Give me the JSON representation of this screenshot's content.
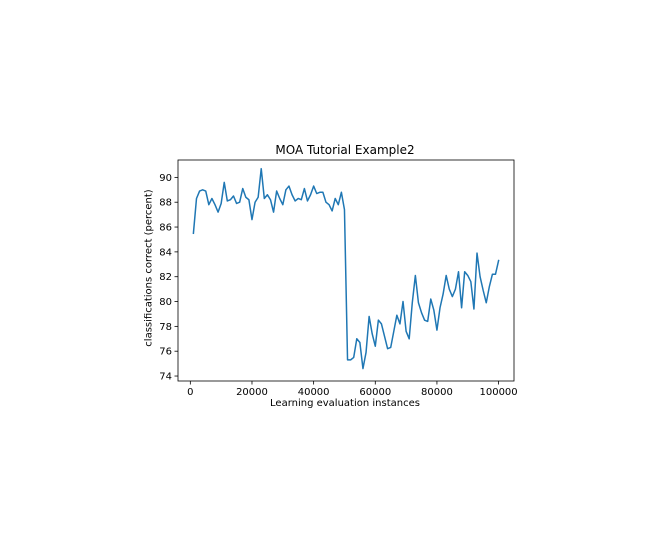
{
  "chart_data": {
    "type": "line",
    "title": "MOA Tutorial Example2",
    "xlabel": "Learning evaluation instances",
    "ylabel": "classifications correct (percent)",
    "xlim": [
      -4000,
      105000
    ],
    "ylim": [
      73.6,
      91.4
    ],
    "grid": false,
    "x_ticks": [
      0,
      20000,
      40000,
      60000,
      80000,
      100000
    ],
    "x_tick_labels": [
      "0",
      "20000",
      "40000",
      "60000",
      "80000",
      "100000"
    ],
    "y_ticks": [
      74,
      76,
      78,
      80,
      82,
      84,
      86,
      88,
      90
    ],
    "y_tick_labels": [
      "74",
      "76",
      "78",
      "80",
      "82",
      "84",
      "86",
      "88",
      "90"
    ],
    "series": [
      {
        "color": "#1f77b4",
        "x": [
          1000,
          2000,
          3000,
          4000,
          5000,
          6000,
          7000,
          8000,
          9000,
          10000,
          11000,
          12000,
          13000,
          14000,
          15000,
          16000,
          17000,
          18000,
          19000,
          20000,
          21000,
          22000,
          23000,
          24000,
          25000,
          26000,
          27000,
          28000,
          29000,
          30000,
          31000,
          32000,
          33000,
          34000,
          35000,
          36000,
          37000,
          38000,
          39000,
          40000,
          41000,
          42000,
          43000,
          44000,
          45000,
          46000,
          47000,
          48000,
          49000,
          50000,
          51000,
          52000,
          53000,
          54000,
          55000,
          56000,
          57000,
          58000,
          59000,
          60000,
          61000,
          62000,
          63000,
          64000,
          65000,
          66000,
          67000,
          68000,
          69000,
          70000,
          71000,
          72000,
          73000,
          74000,
          75000,
          76000,
          77000,
          78000,
          79000,
          80000,
          81000,
          82000,
          83000,
          84000,
          85000,
          86000,
          87000,
          88000,
          89000,
          90000,
          91000,
          92000,
          93000,
          94000,
          95000,
          96000,
          97000,
          98000,
          99000,
          100000
        ],
        "y": [
          85.5,
          88.3,
          88.9,
          89.0,
          88.9,
          87.8,
          88.3,
          87.8,
          87.2,
          87.9,
          89.6,
          88.1,
          88.2,
          88.5,
          87.9,
          88.0,
          89.1,
          88.4,
          88.2,
          86.6,
          88.0,
          88.4,
          90.7,
          88.3,
          88.6,
          88.2,
          87.2,
          88.9,
          88.3,
          87.8,
          89.0,
          89.3,
          88.6,
          88.1,
          88.3,
          88.2,
          89.1,
          88.1,
          88.6,
          89.3,
          88.7,
          88.8,
          88.8,
          88.0,
          87.8,
          87.3,
          88.3,
          87.8,
          88.8,
          87.4,
          75.3,
          75.3,
          75.5,
          77.0,
          76.7,
          74.6,
          75.9,
          78.8,
          77.4,
          76.4,
          78.5,
          78.2,
          77.2,
          76.2,
          76.3,
          77.6,
          78.9,
          78.2,
          80.0,
          77.6,
          77.0,
          79.9,
          82.1,
          79.9,
          79.1,
          78.5,
          78.4,
          80.2,
          79.3,
          77.7,
          79.5,
          80.6,
          82.1,
          81.0,
          80.4,
          81.0,
          82.4,
          79.5,
          82.4,
          82.1,
          81.6,
          79.4,
          83.9,
          82.0,
          80.9,
          79.9,
          81.2,
          82.2,
          82.2,
          83.3
        ]
      }
    ]
  }
}
